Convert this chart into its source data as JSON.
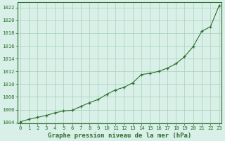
{
  "title": "Graphe pression niveau de la mer (hPa)",
  "x_values": [
    0,
    1,
    2,
    3,
    4,
    5,
    6,
    7,
    8,
    9,
    10,
    11,
    12,
    13,
    14,
    15,
    16,
    17,
    18,
    19,
    20,
    21,
    22,
    23
  ],
  "y_values": [
    1004.1,
    1004.5,
    1004.8,
    1005.1,
    1005.5,
    1005.8,
    1005.9,
    1006.5,
    1007.1,
    1007.6,
    1008.4,
    1009.1,
    1009.5,
    1010.2,
    1011.5,
    1011.7,
    1012.0,
    1012.5,
    1013.2,
    1014.3,
    1015.9,
    1018.3,
    1019.0,
    1022.3
  ],
  "y_min": 1004,
  "y_max": 1022,
  "y_tick_step": 2,
  "line_color": "#2d6e2d",
  "marker_color": "#2d6e2d",
  "bg_color": "#d8f0e8",
  "grid_color": "#a8cfb8",
  "axis_color": "#2d6e2d",
  "title_fontsize": 6.5,
  "tick_fontsize": 5.2,
  "x_tick_labels": [
    "0",
    "1",
    "2",
    "3",
    "4",
    "5",
    "6",
    "7",
    "8",
    "9",
    "10",
    "11",
    "12",
    "13",
    "14",
    "15",
    "16",
    "17",
    "18",
    "19",
    "20",
    "21",
    "22",
    "23"
  ]
}
